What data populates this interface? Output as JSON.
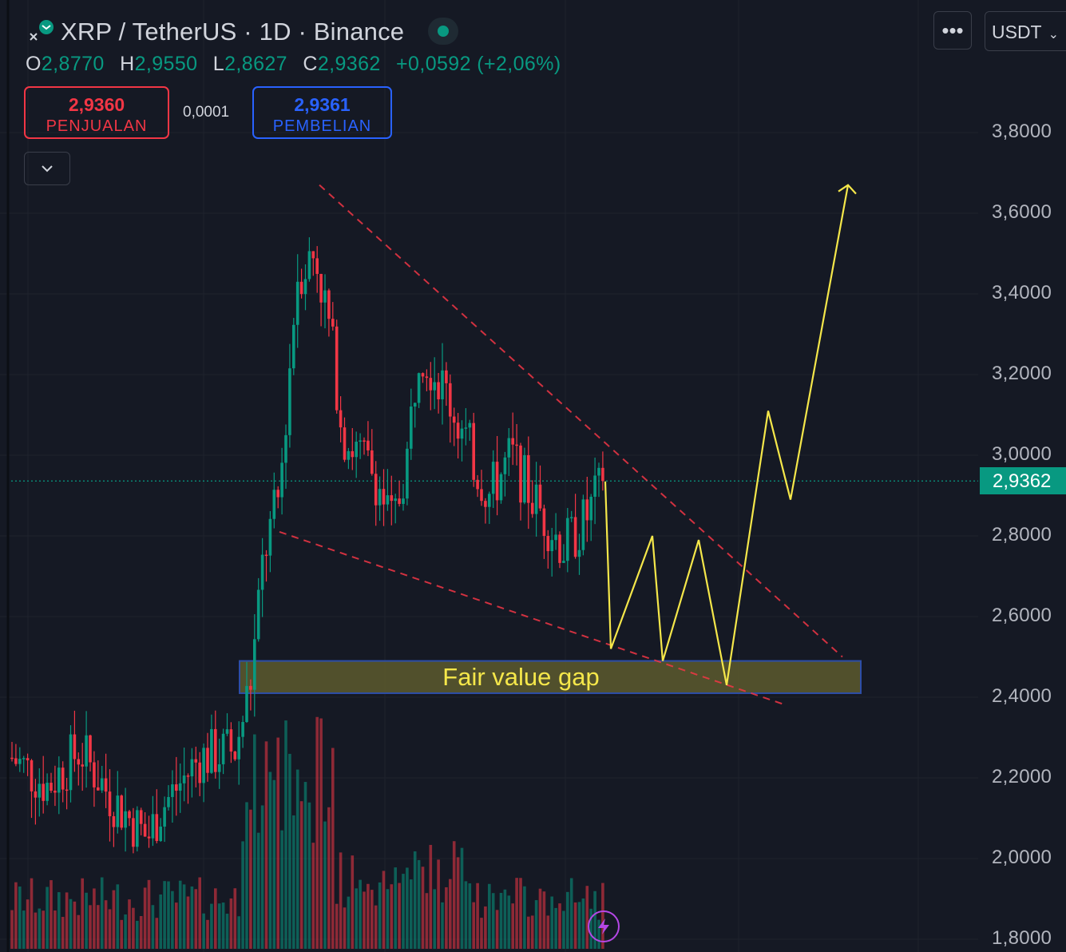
{
  "header": {
    "title": "XRP / TetherUS · 1D · Binance",
    "close_icon": "close-icon",
    "logo_icon": "xrp-logo-icon",
    "live_indicator_color": "#089981"
  },
  "ohlc": {
    "o_label": "O",
    "o_value": "2,8770",
    "h_label": "H",
    "h_value": "2,9550",
    "l_label": "L",
    "l_value": "2,8627",
    "c_label": "C",
    "c_value": "2,9362",
    "change": "+0,0592 (+2,06%)"
  },
  "trade": {
    "sell_price": "2,9360",
    "sell_label": "PENJUALAN",
    "spread": "0,0001",
    "buy_price": "2,9361",
    "buy_label": "PEMBELIAN"
  },
  "toolbar": {
    "more_label": "•••",
    "currency": "USDT"
  },
  "chart_data": {
    "type": "candlestick",
    "symbol": "XRP / TetherUS",
    "interval": "1D",
    "exchange": "Binance",
    "y_axis_ticks": [
      "3,8000",
      "3,6000",
      "3,4000",
      "3,2000",
      "3,0000",
      "2,8000",
      "2,6000",
      "2,4000",
      "2,2000",
      "2,0000",
      "1,8000"
    ],
    "ylim": [
      1.8,
      3.8
    ],
    "current_price": "2,9362",
    "current_price_value": 2.9362,
    "annotations": {
      "fvg_label": "Fair value gap",
      "fvg_range": [
        2.41,
        2.49
      ],
      "projection_path": [
        2.935,
        2.52,
        2.8,
        2.49,
        2.79,
        2.43,
        3.11,
        2.89,
        3.67
      ]
    },
    "colors": {
      "up": "#089981",
      "down": "#f23645",
      "projection": "#f5e74a",
      "trendline": "#f23645",
      "fvg_fill": "#5c5a2e"
    }
  }
}
